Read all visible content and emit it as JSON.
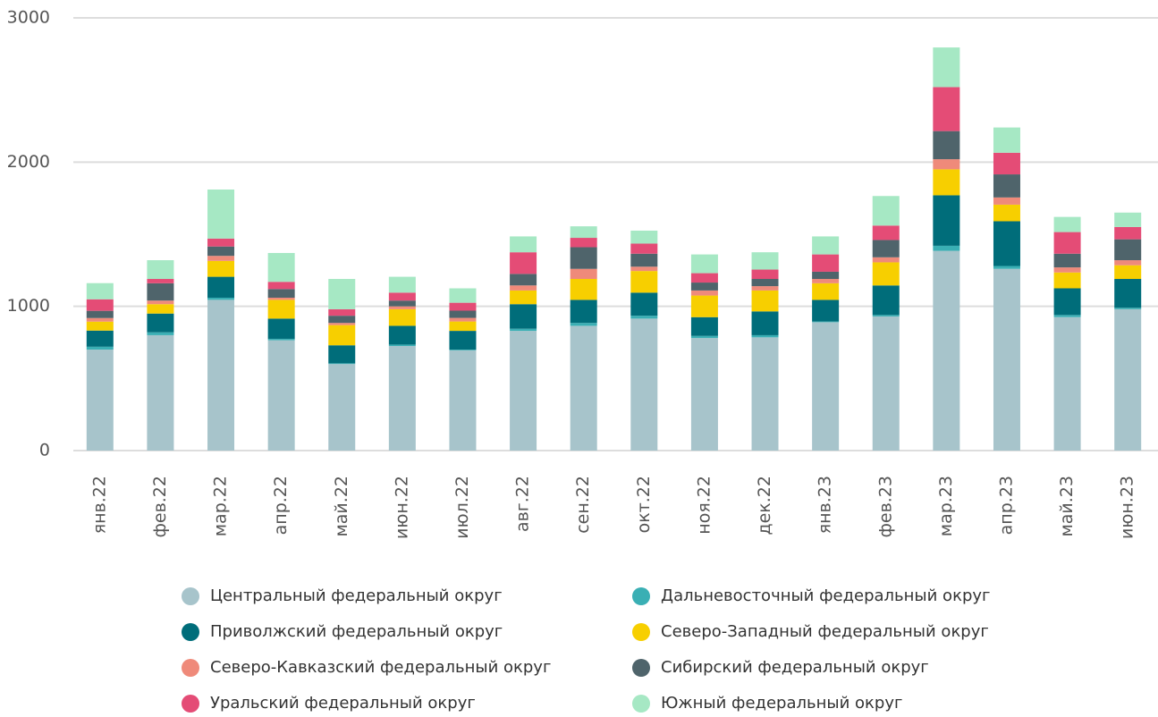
{
  "chart_data": {
    "type": "stacked_bar",
    "categories": [
      "янв.22",
      "фев.22",
      "мар.22",
      "апр.22",
      "май.22",
      "июн.22",
      "июл.22",
      "авг.22",
      "сен.22",
      "окт.22",
      "ноя.22",
      "дек.22",
      "янв.23",
      "фев.23",
      "мар.23",
      "апр.23",
      "май.23",
      "июн.23"
    ],
    "series": [
      {
        "name": "Центральный федеральный округ",
        "color": "#a7c4cb",
        "values": [
          700,
          800,
          1045,
          765,
          600,
          725,
          695,
          830,
          865,
          915,
          780,
          785,
          890,
          930,
          1385,
          1260,
          925,
          980
        ]
      },
      {
        "name": "Дальневосточный федеральный округ",
        "color": "#3aafb4",
        "values": [
          20,
          20,
          15,
          10,
          5,
          10,
          5,
          15,
          20,
          20,
          15,
          15,
          5,
          10,
          35,
          20,
          15,
          10
        ]
      },
      {
        "name": "Приволжский федеральный округ",
        "color": "#006d7a",
        "values": [
          112,
          130,
          145,
          140,
          125,
          130,
          130,
          170,
          160,
          160,
          130,
          165,
          150,
          205,
          350,
          310,
          185,
          200
        ]
      },
      {
        "name": "Северо-Западный федеральный округ",
        "color": "#f7cf00",
        "values": [
          62,
          65,
          110,
          130,
          140,
          115,
          65,
          95,
          145,
          150,
          150,
          145,
          115,
          160,
          180,
          115,
          110,
          95
        ]
      },
      {
        "name": "Северо-Кавказский федеральный округ",
        "color": "#ef8a7a",
        "values": [
          25,
          25,
          35,
          15,
          15,
          20,
          25,
          35,
          70,
          30,
          35,
          30,
          30,
          35,
          70,
          50,
          35,
          35
        ]
      },
      {
        "name": "Сибирский федеральный округ",
        "color": "#4f646b",
        "values": [
          50,
          120,
          65,
          60,
          50,
          40,
          50,
          80,
          150,
          90,
          55,
          50,
          50,
          120,
          195,
          160,
          95,
          145
        ]
      },
      {
        "name": "Уральский федеральный округ",
        "color": "#e44c76",
        "values": [
          80,
          30,
          55,
          50,
          45,
          55,
          55,
          150,
          65,
          70,
          65,
          65,
          120,
          100,
          305,
          150,
          150,
          85
        ]
      },
      {
        "name": "Южный федеральный округ",
        "color": "#a6e8c4",
        "values": [
          112,
          130,
          340,
          200,
          210,
          110,
          100,
          110,
          80,
          90,
          130,
          120,
          125,
          205,
          275,
          175,
          105,
          100
        ]
      }
    ],
    "ylim": [
      0,
      3000
    ],
    "yticks": [
      0,
      1000,
      2000,
      3000
    ],
    "grid": true
  }
}
